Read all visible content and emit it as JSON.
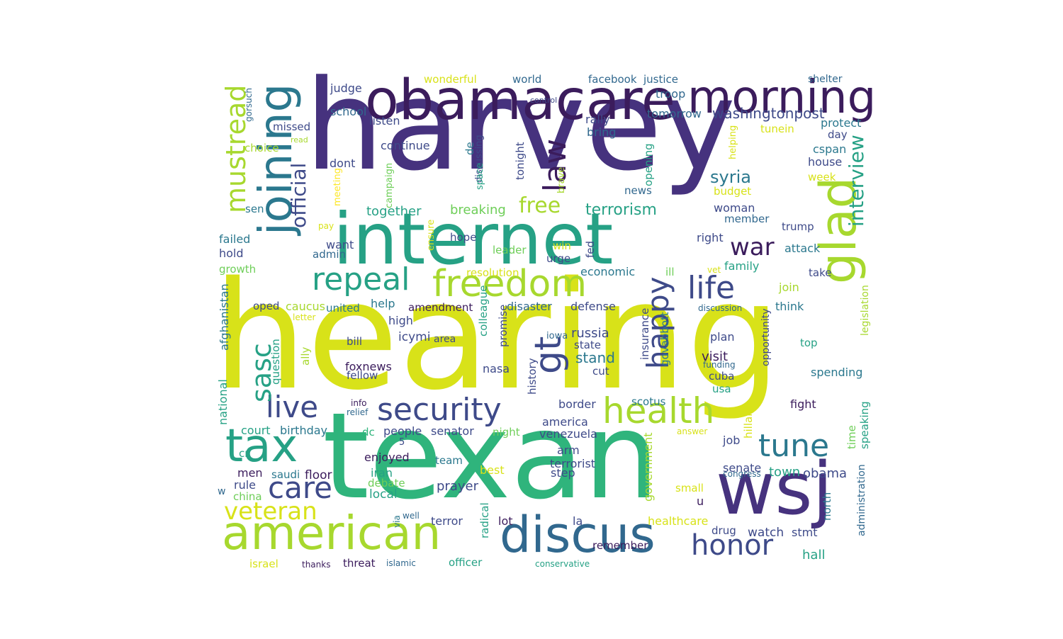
{
  "palette": {
    "dark_purple": "#3b1c5c",
    "purple": "#46327e",
    "indigo": "#3e4a89",
    "blue": "#31688e",
    "teal_blue": "#2b788e",
    "teal": "#26a185",
    "green": "#2fb47c",
    "light_green": "#6ece58",
    "lime": "#a7d82e",
    "yellow": "#d8e219",
    "bright_yellow": "#fde725"
  },
  "words": [
    {
      "text": "hearing",
      "color": "#d8e219"
    },
    {
      "text": "harvey",
      "color": "#46327e"
    },
    {
      "text": "texan",
      "color": "#2fb47c"
    },
    {
      "text": "internet",
      "color": "#26a185"
    },
    {
      "text": "obamacare",
      "color": "#3b1c5c"
    },
    {
      "text": "joining",
      "color": "#2b788e"
    },
    {
      "text": "wsj",
      "color": "#46327e"
    },
    {
      "text": "glad",
      "color": "#a7d82e"
    },
    {
      "text": "morning",
      "color": "#3b1c5c"
    },
    {
      "text": "american",
      "color": "#a7d82e"
    },
    {
      "text": "discus",
      "color": "#31688e"
    },
    {
      "text": "freedom",
      "color": "#a7d82e"
    },
    {
      "text": "tax",
      "color": "#26a185"
    },
    {
      "text": "security",
      "color": "#3e4a89"
    },
    {
      "text": "health",
      "color": "#a7d82e"
    },
    {
      "text": "gt",
      "color": "#3e4a89"
    },
    {
      "text": "repeal",
      "color": "#26a185"
    },
    {
      "text": "mustread",
      "color": "#a7d82e"
    },
    {
      "text": "happy",
      "color": "#3e4a89"
    },
    {
      "text": "life",
      "color": "#3e4a89"
    },
    {
      "text": "law",
      "color": "#3b1c5c"
    },
    {
      "text": "live",
      "color": "#3e4a89"
    },
    {
      "text": "care",
      "color": "#3e4a89"
    },
    {
      "text": "tune",
      "color": "#2b788e"
    },
    {
      "text": "honor",
      "color": "#3e4a89"
    },
    {
      "text": "veteran",
      "color": "#d8e219"
    },
    {
      "text": "sasc",
      "color": "#26a185"
    },
    {
      "text": "official",
      "color": "#3e4a89"
    },
    {
      "text": "interview",
      "color": "#26a185"
    },
    {
      "text": "war",
      "color": "#3b1c5c"
    },
    {
      "text": "free",
      "color": "#a7d82e"
    },
    {
      "text": "terrorism",
      "color": "#26a185"
    },
    {
      "text": "washingtonpost",
      "color": "#3e4a89"
    },
    {
      "text": "syria",
      "color": "#2b788e"
    },
    {
      "text": "breaking",
      "color": "#6ece58"
    },
    {
      "text": "together",
      "color": "#26a185"
    },
    {
      "text": "judge",
      "color": "#3e4a89"
    },
    {
      "text": "school",
      "color": "#31688e"
    },
    {
      "text": "listen",
      "color": "#3e4a89"
    },
    {
      "text": "missed",
      "color": "#3e4a89"
    },
    {
      "text": "choice",
      "color": "#a7d82e"
    },
    {
      "text": "continue",
      "color": "#3e4a89"
    },
    {
      "text": "dont",
      "color": "#3e4a89"
    },
    {
      "text": "rally",
      "color": "#3e4a89"
    },
    {
      "text": "bring",
      "color": "#31688e"
    },
    {
      "text": "tomorrow",
      "color": "#31688e"
    },
    {
      "text": "troop",
      "color": "#31688e"
    },
    {
      "text": "justice",
      "color": "#31688e"
    },
    {
      "text": "facebook",
      "color": "#31688e"
    },
    {
      "text": "world",
      "color": "#31688e"
    },
    {
      "text": "wonderful",
      "color": "#d8e219"
    },
    {
      "text": "shelter",
      "color": "#31688e"
    },
    {
      "text": "protect",
      "color": "#2b788e"
    },
    {
      "text": "day",
      "color": "#3e4a89"
    },
    {
      "text": "cspan",
      "color": "#2b788e"
    },
    {
      "text": "house",
      "color": "#3e4a89"
    },
    {
      "text": "week",
      "color": "#d8e219"
    },
    {
      "text": "budget",
      "color": "#d8e219"
    },
    {
      "text": "tunein",
      "color": "#d8e219"
    },
    {
      "text": "news",
      "color": "#31688e"
    },
    {
      "text": "woman",
      "color": "#3e4a89"
    },
    {
      "text": "member",
      "color": "#31688e"
    },
    {
      "text": "right",
      "color": "#3e4a89"
    },
    {
      "text": "trump",
      "color": "#3e4a89"
    },
    {
      "text": "attack",
      "color": "#2b788e"
    },
    {
      "text": "family",
      "color": "#26a185"
    },
    {
      "text": "take",
      "color": "#3e4a89"
    },
    {
      "text": "join",
      "color": "#a7d82e"
    },
    {
      "text": "think",
      "color": "#2b788e"
    },
    {
      "text": "hope",
      "color": "#3e4a89"
    },
    {
      "text": "want",
      "color": "#3e4a89"
    },
    {
      "text": "admin",
      "color": "#31688e"
    },
    {
      "text": "hold",
      "color": "#3e4a89"
    },
    {
      "text": "failed",
      "color": "#2b788e"
    },
    {
      "text": "growth",
      "color": "#6ece58"
    },
    {
      "text": "leader",
      "color": "#6ece58"
    },
    {
      "text": "win",
      "color": "#d8e219"
    },
    {
      "text": "urge",
      "color": "#3e4a89"
    },
    {
      "text": "fed",
      "color": "#3e4a89"
    },
    {
      "text": "economic",
      "color": "#2b788e"
    },
    {
      "text": "resolution",
      "color": "#d8e219"
    },
    {
      "text": "ill",
      "color": "#6ece58"
    },
    {
      "text": "vet",
      "color": "#d8e219"
    },
    {
      "text": "oped",
      "color": "#3e4a89"
    },
    {
      "text": "caucus",
      "color": "#a7d82e"
    },
    {
      "text": "united",
      "color": "#2b788e"
    },
    {
      "text": "help",
      "color": "#2b788e"
    },
    {
      "text": "amendment",
      "color": "#3b1c5c"
    },
    {
      "text": "disaster",
      "color": "#31688e"
    },
    {
      "text": "defense",
      "color": "#3e4a89"
    },
    {
      "text": "discussion",
      "color": "#31688e"
    },
    {
      "text": "letter",
      "color": "#d8e219"
    },
    {
      "text": "high",
      "color": "#3e4a89"
    },
    {
      "text": "icymi",
      "color": "#3e4a89"
    },
    {
      "text": "area",
      "color": "#3e4a89"
    },
    {
      "text": "russia",
      "color": "#3e4a89"
    },
    {
      "text": "state",
      "color": "#3e4a89"
    },
    {
      "text": "iowa",
      "color": "#31688e"
    },
    {
      "text": "plan",
      "color": "#3e4a89"
    },
    {
      "text": "stand",
      "color": "#2b788e"
    },
    {
      "text": "bill",
      "color": "#3e4a89"
    },
    {
      "text": "top",
      "color": "#26a185"
    },
    {
      "text": "visit",
      "color": "#3b1c5c"
    },
    {
      "text": "funding",
      "color": "#31688e"
    },
    {
      "text": "foxnews",
      "color": "#3b1c5c"
    },
    {
      "text": "fellow",
      "color": "#3e4a89"
    },
    {
      "text": "nasa",
      "color": "#3e4a89"
    },
    {
      "text": "cut",
      "color": "#3e4a89"
    },
    {
      "text": "spending",
      "color": "#2b788e"
    },
    {
      "text": "cuba",
      "color": "#3e4a89"
    },
    {
      "text": "usa",
      "color": "#26a185"
    },
    {
      "text": "info",
      "color": "#3b1c5c"
    },
    {
      "text": "relief",
      "color": "#31688e"
    },
    {
      "text": "border",
      "color": "#3e4a89"
    },
    {
      "text": "scotus",
      "color": "#2b788e"
    },
    {
      "text": "fight",
      "color": "#3b1c5c"
    },
    {
      "text": "court",
      "color": "#26a185"
    },
    {
      "text": "birthday",
      "color": "#2b788e"
    },
    {
      "text": "dc",
      "color": "#2fb47c"
    },
    {
      "text": "people",
      "color": "#3e4a89"
    },
    {
      "text": "senator",
      "color": "#3e4a89"
    },
    {
      "text": "night",
      "color": "#6ece58"
    },
    {
      "text": "america",
      "color": "#3e4a89"
    },
    {
      "text": "venezuela",
      "color": "#3e4a89"
    },
    {
      "text": "answer",
      "color": "#d8e219"
    },
    {
      "text": "5",
      "color": "#3e4a89"
    },
    {
      "text": "arm",
      "color": "#3e4a89"
    },
    {
      "text": "job",
      "color": "#3e4a89"
    },
    {
      "text": "cr",
      "color": "#26a185"
    },
    {
      "text": "men",
      "color": "#3b1c5c"
    },
    {
      "text": "enjoyed",
      "color": "#3b1c5c"
    },
    {
      "text": "team",
      "color": "#2b788e"
    },
    {
      "text": "iran",
      "color": "#26a185"
    },
    {
      "text": "saudi",
      "color": "#2b788e"
    },
    {
      "text": "floor",
      "color": "#3b1c5c"
    },
    {
      "text": "terrorist",
      "color": "#3e4a89"
    },
    {
      "text": "step",
      "color": "#3e4a89"
    },
    {
      "text": "senate",
      "color": "#3e4a89"
    },
    {
      "text": "town",
      "color": "#26a185"
    },
    {
      "text": "obama",
      "color": "#3e4a89"
    },
    {
      "text": "congress",
      "color": "#31688e"
    },
    {
      "text": "best",
      "color": "#d8e219"
    },
    {
      "text": "rule",
      "color": "#3e4a89"
    },
    {
      "text": "debate",
      "color": "#6ece58"
    },
    {
      "text": "prayer",
      "color": "#3e4a89"
    },
    {
      "text": "w",
      "color": "#31688e"
    },
    {
      "text": "china",
      "color": "#6ece58"
    },
    {
      "text": "local",
      "color": "#26a185"
    },
    {
      "text": "small",
      "color": "#d8e219"
    },
    {
      "text": "u",
      "color": "#3b1c5c"
    },
    {
      "text": "well",
      "color": "#31688e"
    },
    {
      "text": "terror",
      "color": "#3e4a89"
    },
    {
      "text": "lot",
      "color": "#3b1c5c"
    },
    {
      "text": "la",
      "color": "#3e4a89"
    },
    {
      "text": "healthcare",
      "color": "#d8e219"
    },
    {
      "text": "drug",
      "color": "#3e4a89"
    },
    {
      "text": "watch",
      "color": "#3e4a89"
    },
    {
      "text": "stmt",
      "color": "#3e4a89"
    },
    {
      "text": "hall",
      "color": "#26a185"
    },
    {
      "text": "israel",
      "color": "#d8e219"
    },
    {
      "text": "thanks",
      "color": "#3b1c5c"
    },
    {
      "text": "threat",
      "color": "#3b1c5c"
    },
    {
      "text": "islamic",
      "color": "#31688e"
    },
    {
      "text": "officer",
      "color": "#26a185"
    },
    {
      "text": "remember",
      "color": "#3b1c5c"
    },
    {
      "text": "conservative",
      "color": "#26a185"
    },
    {
      "text": "gorsuch",
      "color": "#31688e"
    },
    {
      "text": "read",
      "color": "#a7d82e"
    },
    {
      "text": "sen",
      "color": "#2b788e"
    },
    {
      "text": "pay",
      "color": "#d8e219"
    },
    {
      "text": "meeting",
      "color": "#fde725"
    },
    {
      "text": "campaign",
      "color": "#6ece58"
    },
    {
      "text": "ensure",
      "color": "#d8e219"
    },
    {
      "text": "de",
      "color": "#2b788e"
    },
    {
      "text": "discussing",
      "color": "#3e4a89"
    },
    {
      "text": "space",
      "color": "#26a185"
    },
    {
      "text": "tonight",
      "color": "#3e4a89"
    },
    {
      "text": "control",
      "color": "#3e4a89"
    },
    {
      "text": "brave",
      "color": "#a7d82e"
    },
    {
      "text": "opening",
      "color": "#26a185"
    },
    {
      "text": "helping",
      "color": "#d8e219"
    },
    {
      "text": "afghanistan",
      "color": "#2b788e"
    },
    {
      "text": "question",
      "color": "#26a185"
    },
    {
      "text": "national",
      "color": "#26a185"
    },
    {
      "text": "ally",
      "color": "#a7d82e"
    },
    {
      "text": "colleague",
      "color": "#26a185"
    },
    {
      "text": "promise",
      "color": "#3e4a89"
    },
    {
      "text": "history",
      "color": "#3e4a89"
    },
    {
      "text": "insurance",
      "color": "#3e4a89"
    },
    {
      "text": "govabbott",
      "color": "#2b788e"
    },
    {
      "text": "government",
      "color": "#a7d82e"
    },
    {
      "text": "opportunity",
      "color": "#3e4a89"
    },
    {
      "text": "hillary",
      "color": "#d8e219"
    },
    {
      "text": "radical",
      "color": "#26a185"
    },
    {
      "text": "via",
      "color": "#2b788e"
    },
    {
      "text": "north",
      "color": "#2b788e"
    },
    {
      "text": "administration",
      "color": "#31688e"
    },
    {
      "text": "speaking",
      "color": "#26a185"
    },
    {
      "text": "time",
      "color": "#6ece58"
    },
    {
      "text": "legislation",
      "color": "#a7d82e"
    }
  ]
}
